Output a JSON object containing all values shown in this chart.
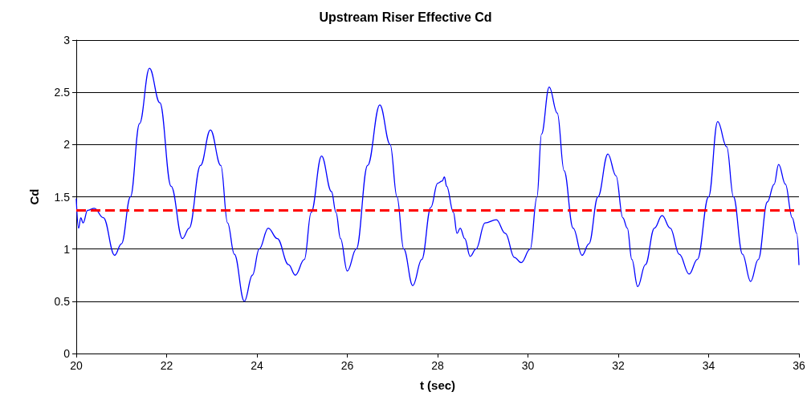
{
  "chart_data": {
    "type": "line",
    "title": "Upstream Riser Effective Cd",
    "xlabel": "t (sec)",
    "ylabel": "Cd",
    "x": [
      20,
      20.05,
      20.1,
      20.15,
      20.25,
      20.4,
      20.6,
      20.85,
      21.0,
      21.2,
      21.4,
      21.62,
      21.85,
      22.1,
      22.35,
      22.5,
      22.75,
      22.97,
      23.2,
      23.35,
      23.5,
      23.72,
      23.9,
      24.05,
      24.25,
      24.45,
      24.7,
      24.85,
      25.05,
      25.2,
      25.43,
      25.65,
      25.75,
      25.85,
      26.0,
      26.2,
      26.45,
      26.72,
      26.95,
      27.1,
      27.25,
      27.45,
      27.65,
      27.85,
      28.0,
      28.1,
      28.15,
      28.2,
      28.35,
      28.43,
      28.5,
      28.6,
      28.72,
      28.85,
      29.05,
      29.3,
      29.5,
      29.7,
      29.85,
      30.05,
      30.2,
      30.3,
      30.47,
      30.65,
      30.8,
      31.0,
      31.2,
      31.35,
      31.55,
      31.77,
      31.95,
      32.1,
      32.2,
      32.3,
      32.43,
      32.6,
      32.8,
      32.97,
      33.15,
      33.35,
      33.57,
      33.75,
      34.0,
      34.2,
      34.4,
      34.55,
      34.75,
      34.93,
      35.1,
      35.3,
      35.45,
      35.55,
      35.7,
      35.85,
      35.95,
      36.0
    ],
    "series": [
      {
        "color": "#0000ff",
        "values": [
          1.48,
          1.2,
          1.3,
          1.25,
          1.37,
          1.39,
          1.3,
          0.94,
          1.05,
          1.5,
          2.2,
          2.73,
          2.4,
          1.6,
          1.1,
          1.2,
          1.8,
          2.14,
          1.8,
          1.25,
          0.95,
          0.5,
          0.75,
          1.0,
          1.2,
          1.1,
          0.85,
          0.75,
          0.9,
          1.35,
          1.89,
          1.55,
          1.35,
          1.1,
          0.79,
          1.0,
          1.8,
          2.38,
          2.0,
          1.5,
          1.0,
          0.65,
          0.9,
          1.4,
          1.63,
          1.65,
          1.69,
          1.6,
          1.35,
          1.15,
          1.2,
          1.1,
          0.93,
          1.0,
          1.25,
          1.28,
          1.15,
          0.92,
          0.87,
          1.0,
          1.5,
          2.1,
          2.55,
          2.3,
          1.75,
          1.2,
          0.94,
          1.05,
          1.5,
          1.91,
          1.7,
          1.3,
          1.2,
          0.9,
          0.64,
          0.85,
          1.2,
          1.32,
          1.2,
          0.95,
          0.76,
          0.9,
          1.5,
          2.22,
          1.98,
          1.5,
          0.95,
          0.69,
          0.9,
          1.45,
          1.62,
          1.81,
          1.62,
          1.3,
          1.15,
          0.85
        ]
      }
    ],
    "xlim": [
      20,
      36
    ],
    "xticks": [
      20,
      22,
      24,
      26,
      28,
      30,
      32,
      34,
      36
    ],
    "ylim": [
      0,
      3
    ],
    "yticks": [
      0,
      0.5,
      1,
      1.5,
      2,
      2.5,
      3
    ],
    "grid": "y",
    "marker": "none",
    "line_style": "solid",
    "ref_lines": [
      {
        "axis": "y",
        "value": 1.37,
        "color": "#ff0000",
        "line_style": "dashed"
      }
    ]
  }
}
